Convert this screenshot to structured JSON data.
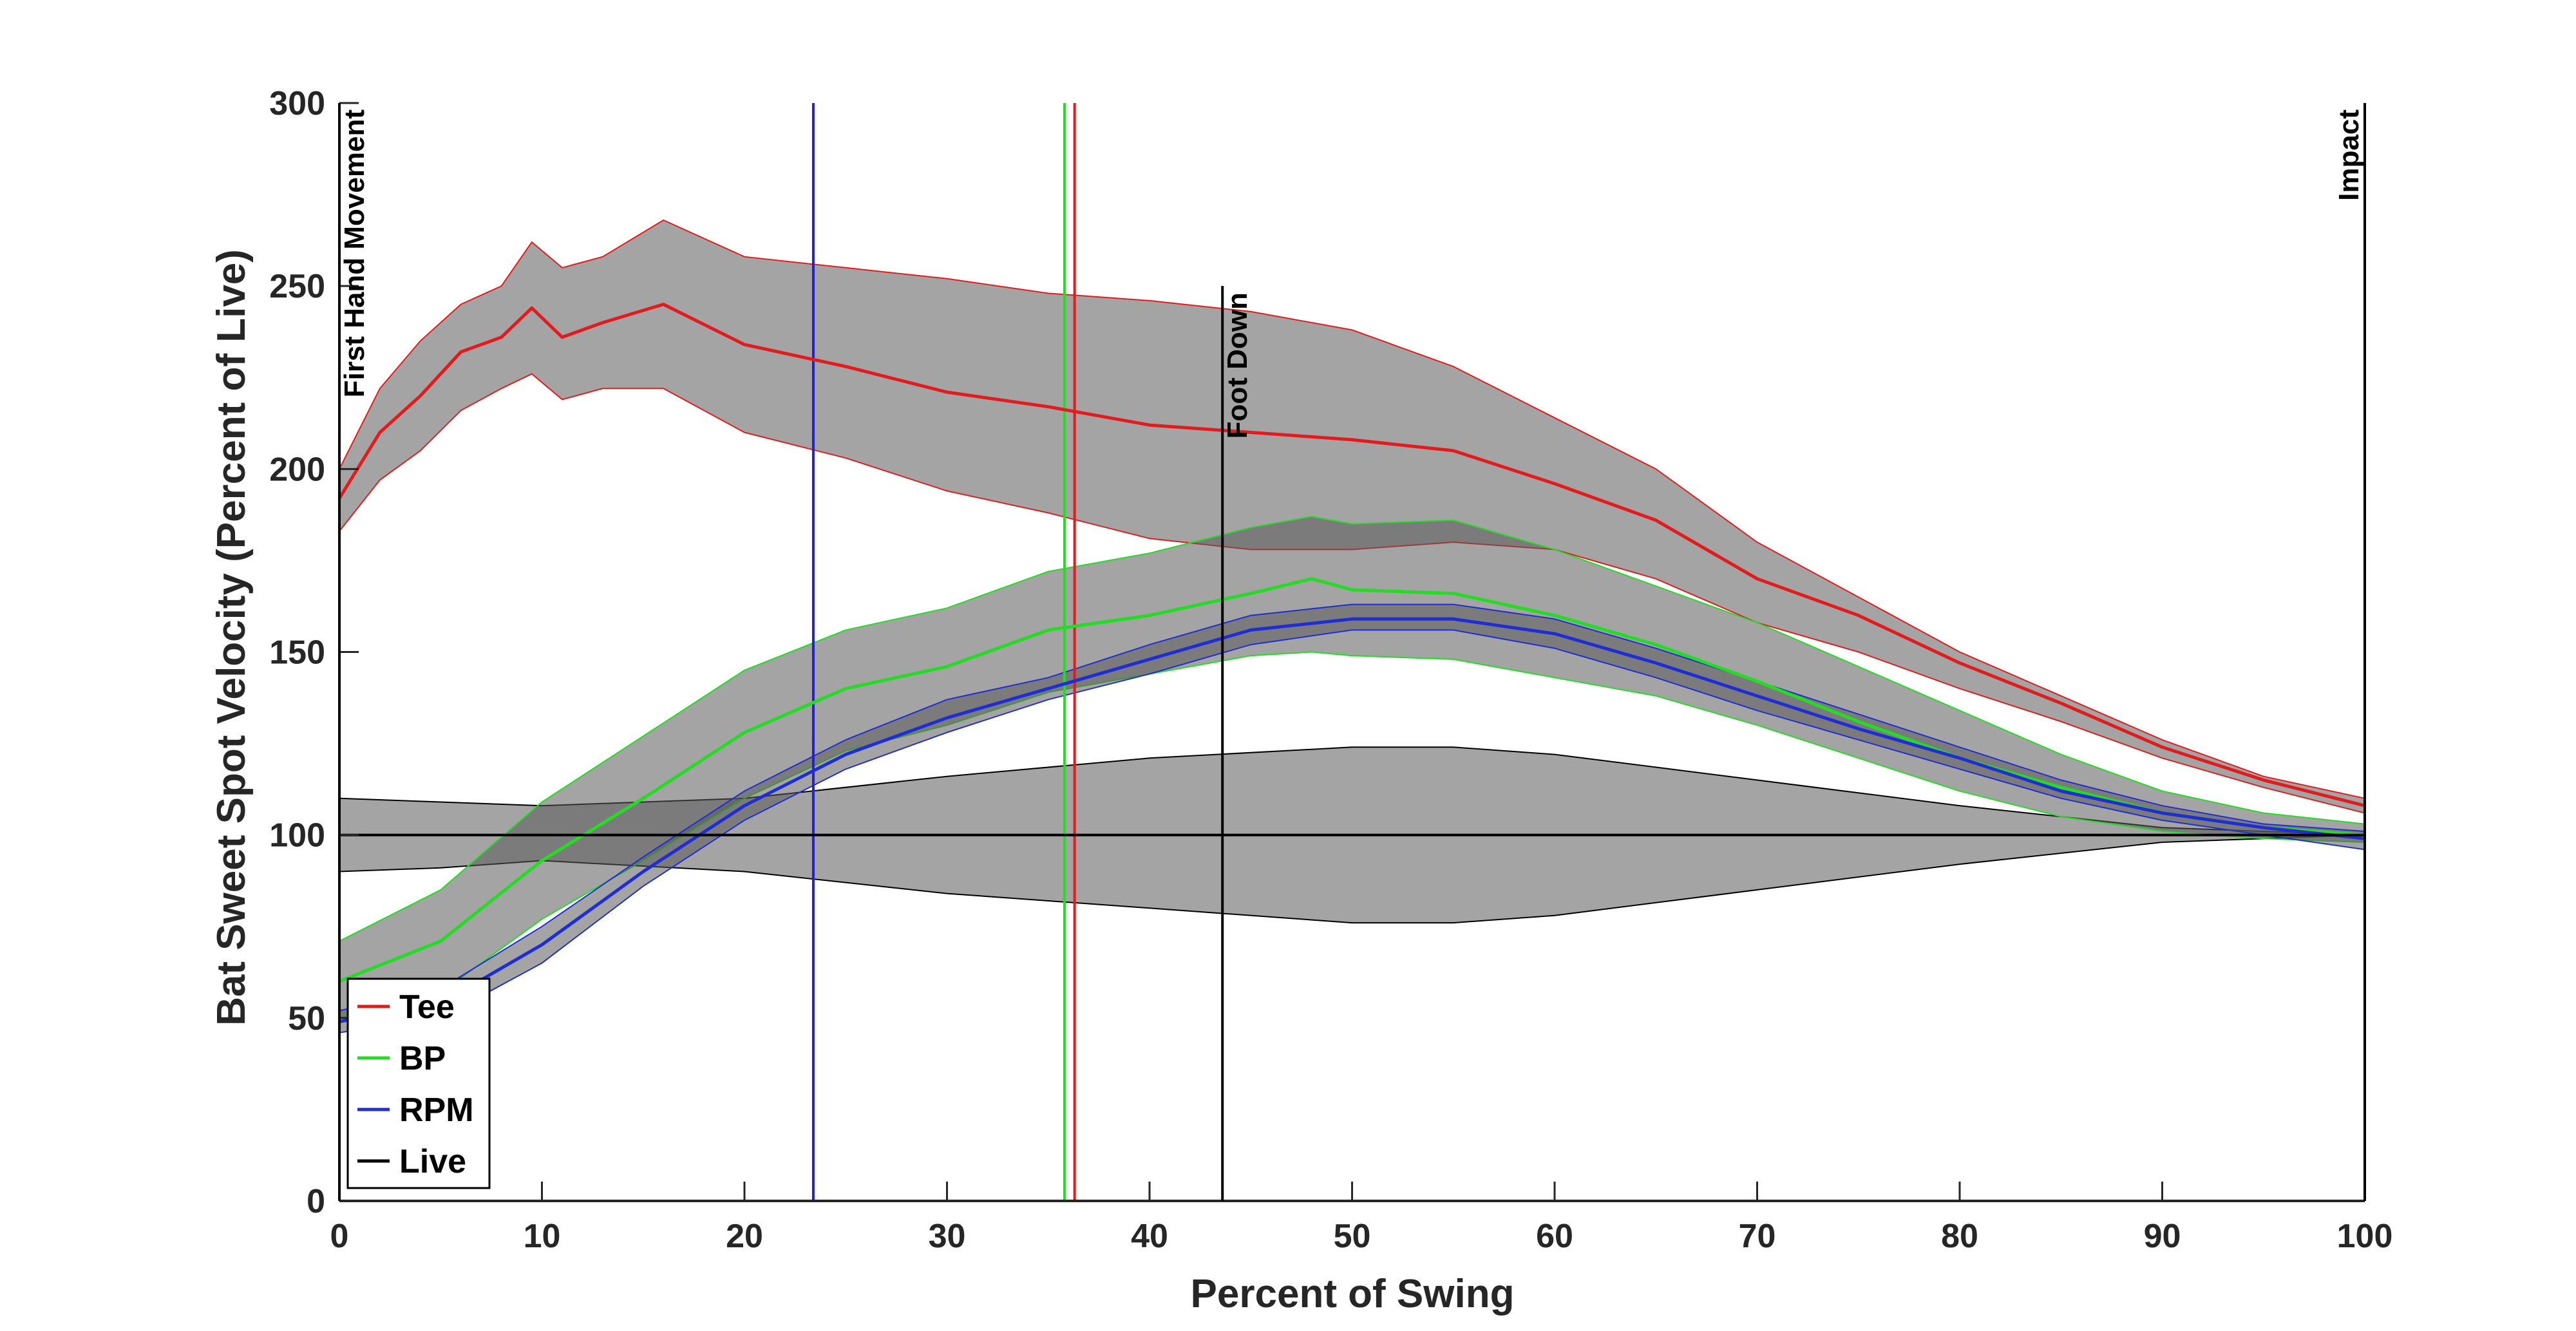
{
  "chart_data": {
    "type": "line",
    "title": "",
    "xlabel": "Percent of Swing",
    "ylabel": "Bat Sweet Spot Velocity (Percent of Live)",
    "xlim": [
      0,
      100
    ],
    "ylim": [
      0,
      300
    ],
    "xticks": [
      0,
      10,
      20,
      30,
      40,
      50,
      60,
      70,
      80,
      90,
      100
    ],
    "yticks": [
      0,
      50,
      100,
      150,
      200,
      250,
      300
    ],
    "grid": false,
    "legend_position": "bottom-left",
    "series": [
      {
        "name": "Tee",
        "color": "#e41a1c",
        "x": [
          0,
          2,
          4,
          6,
          8,
          9.5,
          11,
          13,
          16,
          20,
          25,
          30,
          35,
          40,
          45,
          50,
          55,
          60,
          65,
          70,
          75,
          80,
          85,
          90,
          95,
          100
        ],
        "mean": [
          192,
          210,
          220,
          232,
          236,
          244,
          236,
          240,
          245,
          234,
          228,
          221,
          217,
          212,
          210,
          208,
          205,
          196,
          186,
          170,
          160,
          147,
          136,
          124,
          115,
          108
        ],
        "upper": [
          200,
          222,
          235,
          245,
          250,
          262,
          255,
          258,
          268,
          258,
          255,
          252,
          248,
          246,
          243,
          238,
          228,
          214,
          200,
          180,
          165,
          150,
          138,
          126,
          116,
          110
        ],
        "lower": [
          183,
          197,
          205,
          216,
          222,
          226,
          219,
          222,
          222,
          210,
          203,
          194,
          188,
          181,
          178,
          178,
          180,
          178,
          170,
          158,
          150,
          140,
          131,
          121,
          113,
          106
        ]
      },
      {
        "name": "BP",
        "color": "#22dd22",
        "x": [
          0,
          5,
          10,
          15,
          20,
          25,
          30,
          35,
          40,
          45,
          48,
          50,
          55,
          60,
          65,
          70,
          75,
          80,
          85,
          90,
          95,
          100
        ],
        "mean": [
          60,
          71,
          93,
          110,
          128,
          140,
          146,
          156,
          160,
          166,
          170,
          167,
          166,
          160,
          152,
          142,
          131,
          121,
          113,
          106,
          102,
          100
        ],
        "upper": [
          71,
          85,
          109,
          127,
          145,
          156,
          162,
          172,
          177,
          184,
          187,
          185,
          186,
          178,
          168,
          158,
          146,
          134,
          122,
          112,
          106,
          103
        ],
        "lower": [
          50,
          57,
          77,
          93,
          110,
          123,
          130,
          139,
          144,
          149,
          150,
          149,
          148,
          143,
          138,
          130,
          121,
          112,
          105,
          101,
          99,
          98
        ]
      },
      {
        "name": "RPM",
        "color": "#1f2dd6",
        "x": [
          0,
          5,
          10,
          15,
          20,
          25,
          30,
          35,
          40,
          45,
          50,
          55,
          60,
          65,
          70,
          75,
          80,
          85,
          90,
          95,
          100
        ],
        "mean": [
          49,
          54,
          70,
          90,
          108,
          122,
          132,
          140,
          148,
          156,
          159,
          159,
          155,
          147,
          138,
          129,
          121,
          112,
          106,
          102,
          99
        ],
        "upper": [
          52,
          58,
          75,
          94,
          112,
          126,
          137,
          143,
          152,
          160,
          163,
          163,
          159,
          151,
          142,
          133,
          124,
          115,
          108,
          103,
          101
        ],
        "lower": [
          46,
          50,
          65,
          86,
          104,
          118,
          128,
          137,
          144,
          152,
          156,
          156,
          151,
          143,
          134,
          126,
          118,
          110,
          104,
          100,
          96
        ]
      },
      {
        "name": "Live",
        "color": "#000000",
        "x": [
          0,
          5,
          10,
          20,
          30,
          40,
          50,
          55,
          60,
          70,
          80,
          90,
          100
        ],
        "mean": [
          100,
          100,
          100,
          100,
          100,
          100,
          100,
          100,
          100,
          100,
          100,
          100,
          100
        ],
        "upper": [
          110,
          109,
          108,
          110,
          116,
          121,
          124,
          124,
          122,
          115,
          108,
          102,
          100
        ],
        "lower": [
          90,
          91,
          93,
          90,
          84,
          80,
          76,
          76,
          78,
          85,
          92,
          98,
          100
        ]
      }
    ],
    "vertical_markers": [
      {
        "x": 23.4,
        "color": "#2222cc"
      },
      {
        "x": 35.8,
        "color": "#22dd22"
      },
      {
        "x": 36.3,
        "color": "#e41a1c"
      }
    ],
    "events": [
      {
        "x": 0,
        "label": "First Hand Movement",
        "top": 300,
        "color": "#000000"
      },
      {
        "x": 43.6,
        "label": "Foot Down",
        "top": 250,
        "color": "#000000"
      },
      {
        "x": 100,
        "label": "Impact",
        "top": 300,
        "color": "#000000"
      }
    ],
    "band_fill": "#5a5a5a",
    "band_opacity": 0.55
  }
}
